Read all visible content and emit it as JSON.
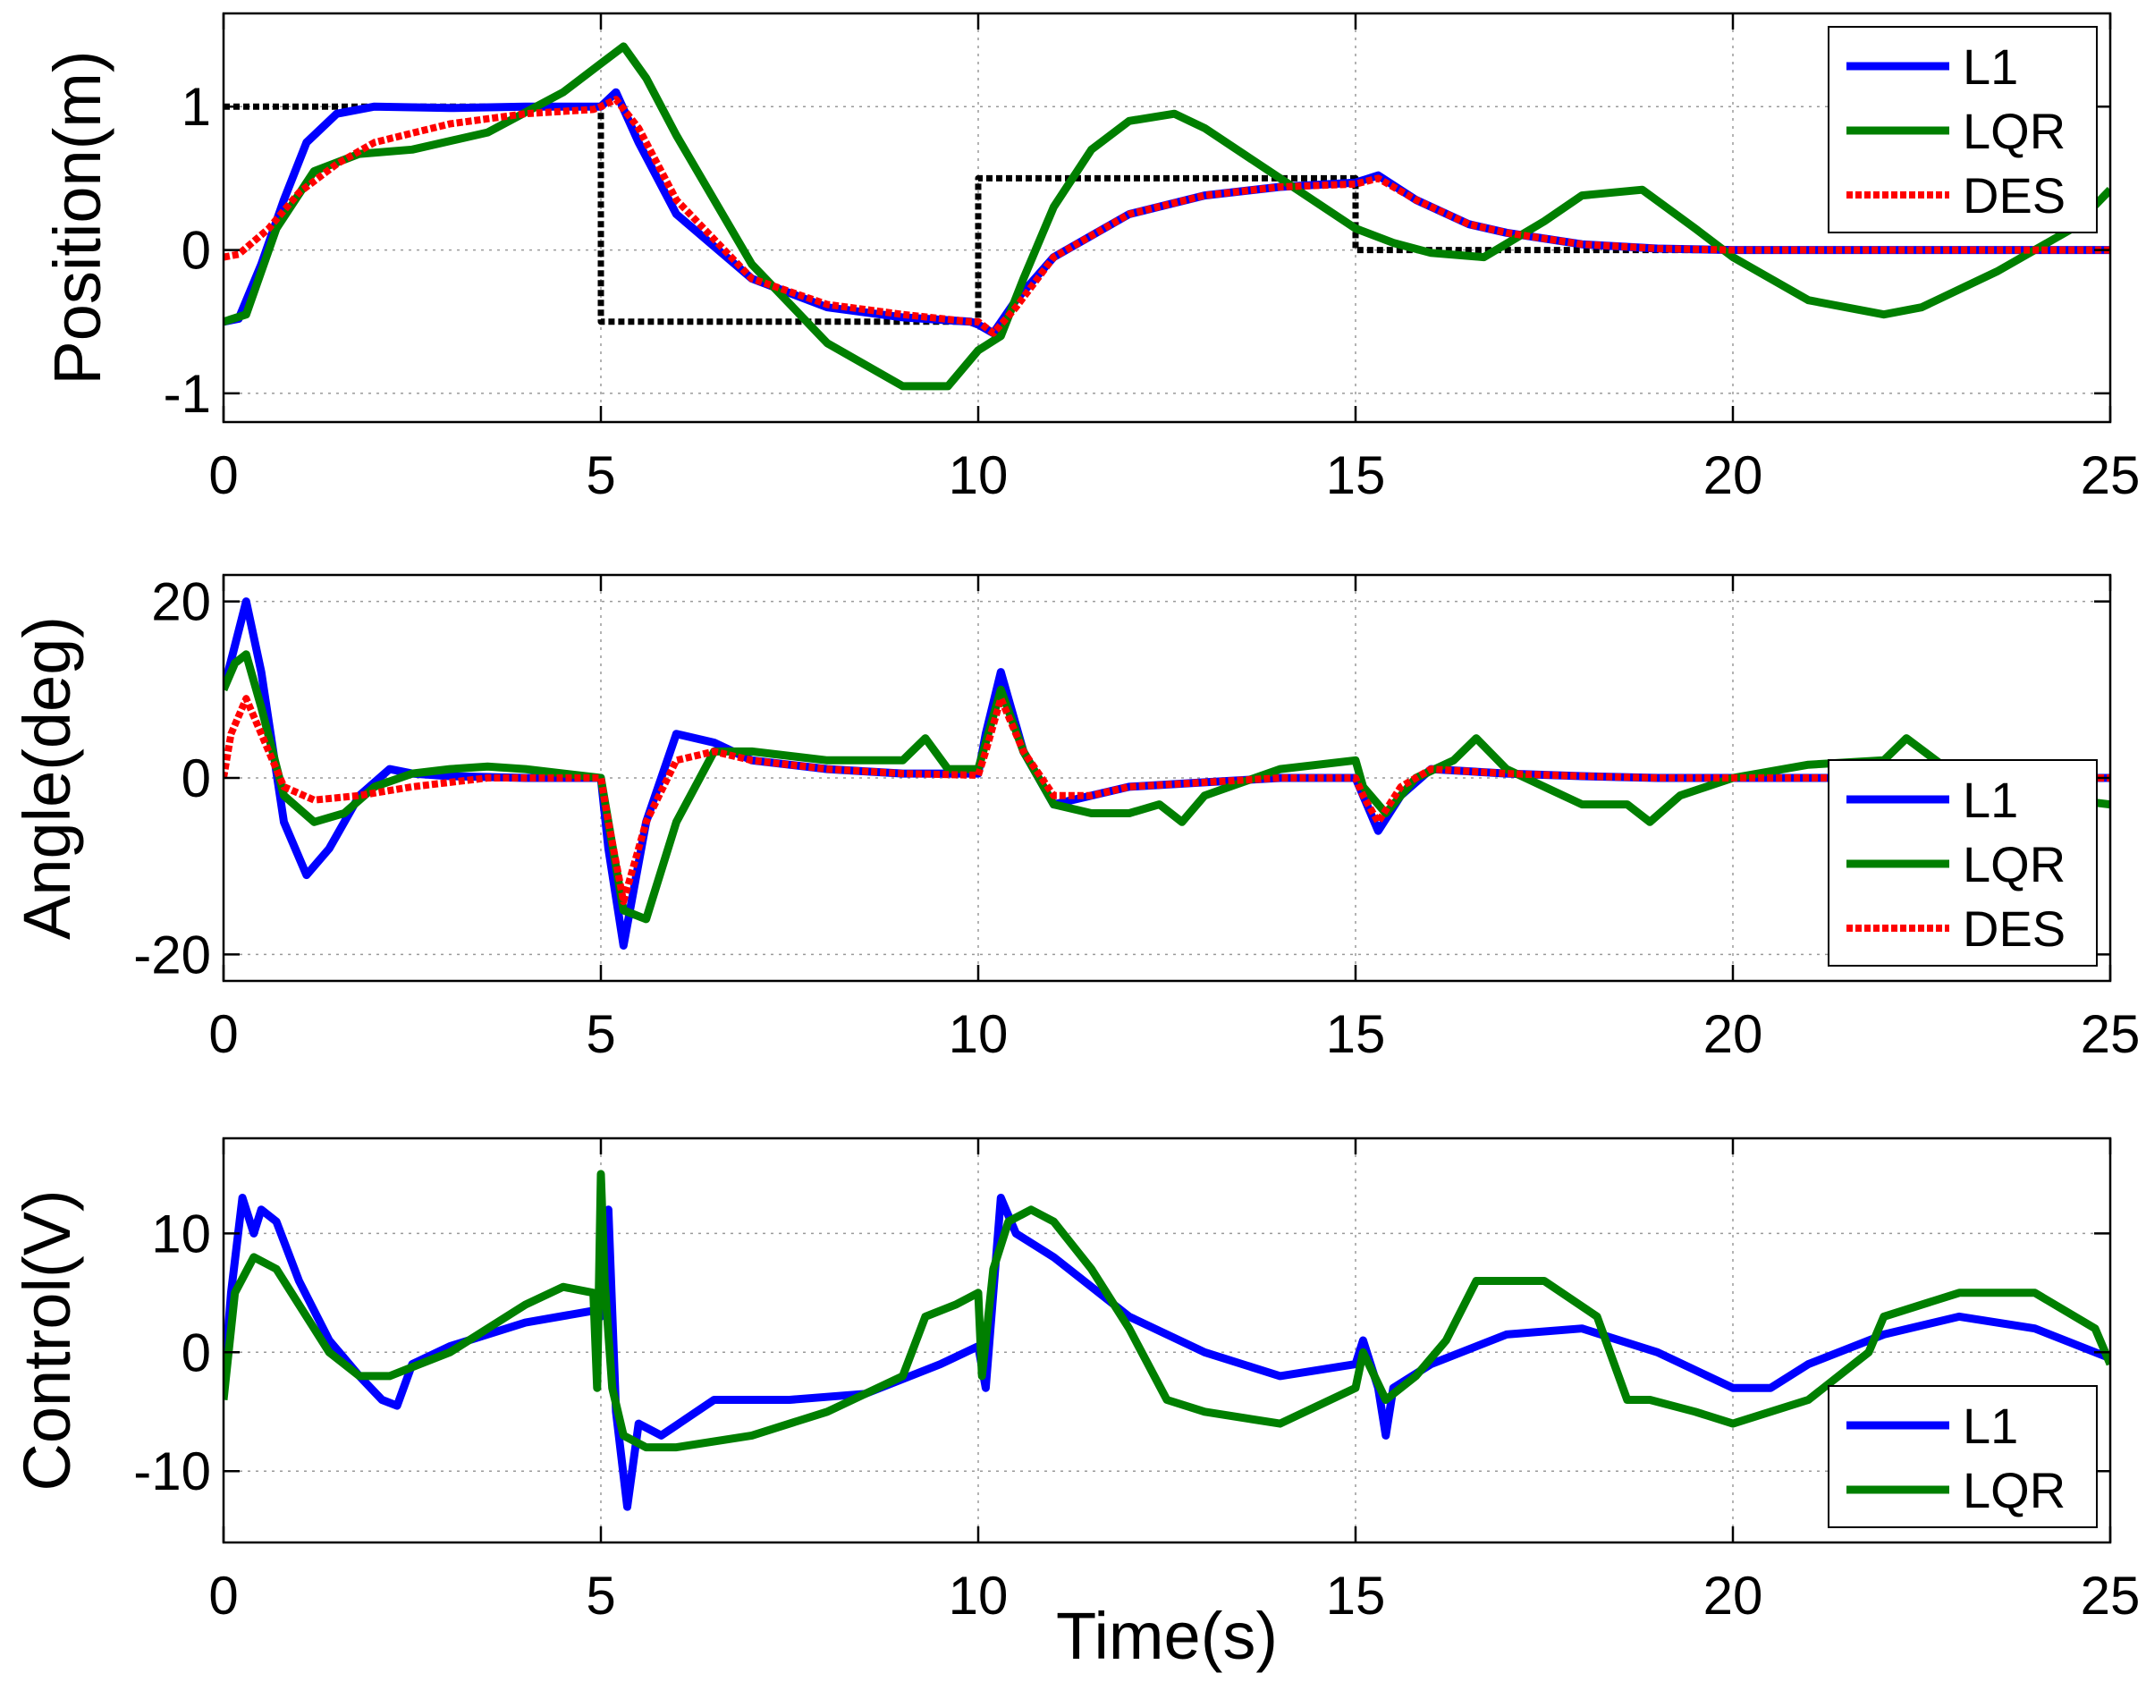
{
  "chart_data": [
    {
      "type": "line",
      "name": "position",
      "ylabel": "Position(m)",
      "xlabel": "",
      "xlim": [
        0,
        25
      ],
      "ylim": [
        -1.2,
        1.65
      ],
      "xticks": [
        0,
        5,
        10,
        15,
        20,
        25
      ],
      "yticks": [
        -1,
        0,
        1
      ],
      "ytick_labels": [
        "-1",
        "0",
        "1"
      ],
      "grid": true,
      "legend": {
        "location": "top-right",
        "entries": [
          "L1",
          "LQR",
          "DES"
        ]
      },
      "series": [
        {
          "name": "L1",
          "color": "#0000ff",
          "style": "solid",
          "legend": true,
          "x": [
            0,
            0.2,
            0.5,
            0.8,
            1.1,
            1.5,
            2,
            3,
            4,
            4.9,
            5,
            5.2,
            5.5,
            6,
            7,
            8,
            9,
            9.9,
            10,
            10.2,
            10.5,
            11,
            12,
            13,
            14,
            15,
            15.3,
            15.8,
            16.5,
            17,
            18,
            19,
            20,
            21,
            22,
            23,
            24,
            25
          ],
          "y": [
            -0.5,
            -0.48,
            -0.1,
            0.35,
            0.75,
            0.95,
            1.0,
            0.99,
            1.0,
            1.0,
            1.0,
            1.1,
            0.75,
            0.25,
            -0.2,
            -0.4,
            -0.47,
            -0.5,
            -0.52,
            -0.58,
            -0.35,
            -0.05,
            0.25,
            0.38,
            0.44,
            0.47,
            0.52,
            0.35,
            0.18,
            0.12,
            0.04,
            0.01,
            0.0,
            0.0,
            0.0,
            0.0,
            0.0,
            0.0
          ]
        },
        {
          "name": "LQR",
          "color": "#007f00",
          "style": "solid",
          "legend": true,
          "x": [
            0,
            0.3,
            0.7,
            1.2,
            1.8,
            2.5,
            3.5,
            4.5,
            5,
            5.3,
            5.6,
            6,
            7,
            8,
            9,
            9.6,
            10,
            10.3,
            10.6,
            11,
            11.5,
            12,
            12.6,
            13,
            14,
            15,
            15.5,
            16,
            16.7,
            17.5,
            18,
            18.8,
            19.5,
            20,
            21,
            22,
            22.5,
            23.5,
            24.5,
            25
          ],
          "y": [
            -0.5,
            -0.45,
            0.15,
            0.55,
            0.67,
            0.7,
            0.82,
            1.1,
            1.3,
            1.42,
            1.2,
            0.8,
            -0.1,
            -0.65,
            -0.95,
            -0.95,
            -0.7,
            -0.6,
            -0.2,
            0.3,
            0.7,
            0.9,
            0.95,
            0.85,
            0.5,
            0.15,
            0.05,
            -0.02,
            -0.05,
            0.2,
            0.38,
            0.42,
            0.15,
            -0.05,
            -0.35,
            -0.45,
            -0.4,
            -0.15,
            0.15,
            0.42
          ]
        },
        {
          "name": "DES",
          "color": "#ff0000",
          "style": "dotted",
          "legend": true,
          "x": [
            0,
            0.2,
            0.6,
            1,
            1.5,
            2,
            3,
            4,
            4.9,
            5,
            5.2,
            5.5,
            6,
            7,
            8,
            9,
            9.9,
            10,
            10.2,
            10.5,
            11,
            12,
            13,
            14,
            15,
            15.3,
            15.8,
            16.5,
            17,
            18,
            19,
            20,
            21,
            22,
            23,
            24,
            25
          ],
          "y": [
            -0.05,
            -0.03,
            0.15,
            0.4,
            0.6,
            0.75,
            0.88,
            0.95,
            0.98,
            1.0,
            1.05,
            0.85,
            0.35,
            -0.2,
            -0.38,
            -0.45,
            -0.5,
            -0.5,
            -0.58,
            -0.4,
            -0.05,
            0.25,
            0.38,
            0.44,
            0.46,
            0.5,
            0.35,
            0.18,
            0.12,
            0.04,
            0.01,
            0.0,
            0.0,
            0.0,
            0.0,
            0.0,
            0.0
          ]
        },
        {
          "name": "Reference",
          "color": "#000000",
          "style": "dotted",
          "legend": false,
          "x": [
            0,
            5,
            5,
            10,
            10,
            15,
            15,
            25
          ],
          "y": [
            1,
            1,
            -0.5,
            -0.5,
            0.5,
            0.5,
            0.0,
            0.0
          ]
        }
      ]
    },
    {
      "type": "line",
      "name": "angle",
      "ylabel": "Angle(deg)",
      "xlabel": "",
      "xlim": [
        0,
        25
      ],
      "ylim": [
        -23,
        23
      ],
      "xticks": [
        0,
        5,
        10,
        15,
        20,
        25
      ],
      "yticks": [
        -20,
        0,
        20
      ],
      "ytick_labels": [
        "-20",
        "0",
        "20"
      ],
      "grid": true,
      "legend": {
        "location": "bottom-right",
        "entries": [
          "L1",
          "LQR",
          "DES"
        ]
      },
      "series": [
        {
          "name": "L1",
          "color": "#0000ff",
          "style": "solid",
          "legend": true,
          "x": [
            0,
            0.15,
            0.3,
            0.5,
            0.8,
            1.1,
            1.4,
            1.8,
            2.2,
            2.5,
            3,
            4,
            5,
            5.1,
            5.3,
            5.6,
            6,
            6.5,
            7,
            8,
            9,
            10,
            10.1,
            10.3,
            10.6,
            11,
            11.5,
            12,
            13,
            14,
            15,
            15.1,
            15.3,
            15.6,
            16,
            17,
            18,
            19,
            20,
            21,
            22,
            23,
            24,
            25
          ],
          "y": [
            10,
            15,
            20,
            12,
            -5,
            -11,
            -8,
            -2,
            1,
            0.5,
            0.2,
            0.0,
            0.0,
            -8,
            -19,
            -5,
            5,
            4,
            2,
            1,
            0.5,
            0.5,
            5,
            12,
            3,
            -3,
            -2,
            -1,
            -0.5,
            0.0,
            0.0,
            -2,
            -6,
            -2,
            1,
            0.5,
            0.2,
            0.0,
            0.0,
            0.0,
            0.0,
            0.0,
            0.0,
            0.0
          ]
        },
        {
          "name": "LQR",
          "color": "#007f00",
          "style": "solid",
          "legend": true,
          "x": [
            0,
            0.15,
            0.3,
            0.5,
            0.8,
            1.2,
            1.6,
            2,
            2.5,
            3,
            3.5,
            4,
            5,
            5.1,
            5.3,
            5.6,
            6,
            6.5,
            7,
            8,
            9,
            9.3,
            9.6,
            10,
            10.1,
            10.3,
            10.6,
            11,
            11.5,
            12,
            12.4,
            12.7,
            13,
            14,
            15,
            15.1,
            15.4,
            15.8,
            16.3,
            16.6,
            17,
            18,
            18.6,
            18.9,
            19.3,
            20,
            21,
            22,
            22.3,
            23,
            24,
            25
          ],
          "y": [
            10,
            13,
            14,
            8,
            -2,
            -5,
            -4,
            -1,
            0.5,
            1,
            1.3,
            1,
            0.0,
            -5,
            -15,
            -16,
            -5,
            3,
            3,
            2,
            2,
            4.5,
            1,
            1,
            4,
            10,
            3,
            -3,
            -4,
            -4,
            -3,
            -5,
            -2,
            1,
            2,
            -1,
            -4,
            0,
            2,
            4.5,
            1,
            -3,
            -3,
            -5,
            -2,
            0,
            1.5,
            2,
            4.5,
            0,
            -2,
            -3
          ]
        },
        {
          "name": "DES",
          "color": "#ff0000",
          "style": "dotted",
          "legend": true,
          "x": [
            0,
            0.1,
            0.3,
            0.5,
            0.8,
            1.2,
            1.8,
            2.5,
            3.5,
            5,
            5.1,
            5.3,
            5.6,
            6,
            6.5,
            7,
            8,
            9,
            10,
            10.1,
            10.3,
            10.6,
            11,
            11.5,
            12,
            13,
            14,
            15,
            15.1,
            15.3,
            15.6,
            16,
            17,
            18,
            19,
            20,
            25
          ],
          "y": [
            0,
            5,
            9,
            5,
            -1,
            -2.5,
            -2,
            -1,
            0,
            0,
            -5,
            -14,
            -5,
            2,
            3,
            2,
            1,
            0.5,
            0.3,
            3,
            9,
            3,
            -2,
            -2,
            -1,
            -0.5,
            0,
            0,
            -2,
            -5,
            -1,
            1,
            0.5,
            0.2,
            0.0,
            0.0,
            0.0
          ]
        }
      ]
    },
    {
      "type": "line",
      "name": "control",
      "ylabel": "Control(V)",
      "xlabel": "Time(s)",
      "xlim": [
        0,
        25
      ],
      "ylim": [
        -16,
        18
      ],
      "xticks": [
        0,
        5,
        10,
        15,
        20,
        25
      ],
      "yticks": [
        -10,
        0,
        10
      ],
      "ytick_labels": [
        "-10",
        "0",
        "10"
      ],
      "grid": true,
      "legend": {
        "location": "bottom-right",
        "entries": [
          "L1",
          "LQR"
        ]
      },
      "series": [
        {
          "name": "L1",
          "color": "#0000ff",
          "style": "solid",
          "legend": true,
          "x": [
            0,
            0.1,
            0.25,
            0.4,
            0.5,
            0.7,
            1,
            1.4,
            1.8,
            2.1,
            2.3,
            2.5,
            3,
            4,
            4.9,
            5.0,
            5.1,
            5.2,
            5.35,
            5.5,
            5.8,
            6.5,
            7.5,
            8.5,
            9.5,
            10,
            10.1,
            10.3,
            10.5,
            11,
            12,
            13,
            14,
            15,
            15.1,
            15.3,
            15.4,
            15.5,
            16,
            17,
            18,
            19,
            20,
            20.5,
            21,
            22,
            23,
            24,
            25
          ],
          "y": [
            -3,
            5,
            13,
            10,
            12,
            11,
            6,
            1,
            -2,
            -4,
            -4.5,
            -1,
            0.5,
            2.5,
            3.5,
            3,
            12,
            -5,
            -13,
            -6,
            -7,
            -4,
            -4,
            -3.5,
            -1,
            0.5,
            -3,
            13,
            10,
            8,
            3,
            0,
            -2,
            -1,
            1,
            -3,
            -7,
            -3,
            -1,
            1.5,
            2,
            0,
            -3,
            -3,
            -1,
            1.5,
            3,
            2,
            -0.5
          ]
        },
        {
          "name": "LQR",
          "color": "#007f00",
          "style": "solid",
          "legend": true,
          "x": [
            0,
            0.15,
            0.4,
            0.7,
            1,
            1.4,
            1.8,
            2.2,
            2.6,
            3,
            3.5,
            4,
            4.5,
            4.9,
            4.95,
            5.0,
            5.05,
            5.15,
            5.3,
            5.6,
            6,
            7,
            8,
            9,
            9.3,
            9.7,
            10,
            10.05,
            10.2,
            10.4,
            10.7,
            11,
            11.5,
            12,
            12.5,
            13,
            14,
            15,
            15.1,
            15.4,
            15.8,
            16.2,
            16.6,
            17.5,
            18.2,
            18.6,
            18.9,
            19.5,
            20,
            21,
            21.8,
            22,
            23,
            24,
            24.8,
            25
          ],
          "y": [
            -4,
            5,
            8,
            7,
            4,
            0,
            -2,
            -2,
            -1,
            0,
            2,
            4,
            5.5,
            5,
            -3,
            15,
            6,
            -3,
            -7,
            -8,
            -8,
            -7,
            -5,
            -2,
            3,
            4,
            5,
            -2,
            7,
            11,
            12,
            11,
            7,
            2,
            -4,
            -5,
            -6,
            -3,
            0,
            -4,
            -2,
            1,
            6,
            6,
            3,
            -4,
            -4,
            -5,
            -6,
            -4,
            0,
            3,
            5,
            5,
            2,
            -1
          ]
        }
      ]
    }
  ]
}
